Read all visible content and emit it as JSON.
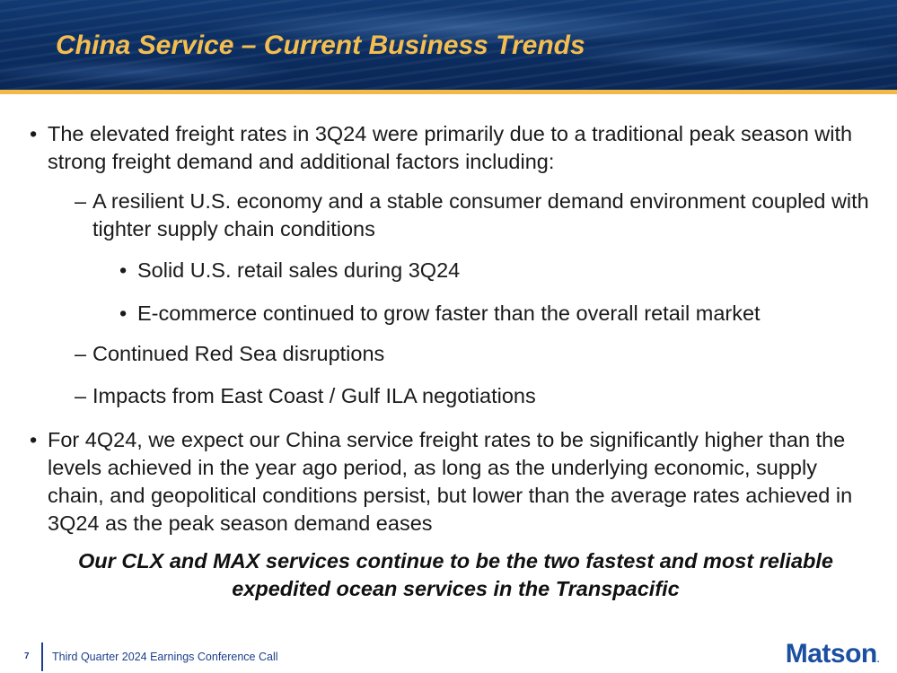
{
  "slide": {
    "title": "China Service – Current Business Trends",
    "page_number": "7",
    "footer_text": "Third Quarter 2024 Earnings Conference Call",
    "logo": {
      "text": "Matson",
      "dot": "."
    }
  },
  "bullets": {
    "b1": {
      "marker": "•",
      "text": "The elevated freight rates in 3Q24 were primarily due to a traditional peak season with strong freight demand and additional factors including:"
    },
    "b1a": {
      "marker": "–",
      "text": "A resilient U.S. economy and a stable consumer demand environment coupled with tighter supply chain conditions"
    },
    "b1a1": {
      "marker": "•",
      "text": "Solid U.S. retail sales during 3Q24"
    },
    "b1a2": {
      "marker": "•",
      "text": "E-commerce continued to grow faster than the overall retail market"
    },
    "b1b": {
      "marker": "–",
      "text": "Continued Red Sea disruptions"
    },
    "b1c": {
      "marker": "–",
      "text": "Impacts from East Coast / Gulf ILA negotiations"
    },
    "b2": {
      "marker": "•",
      "text": "For 4Q24, we expect our China service freight rates to be significantly higher than the levels achieved in the year ago period, as long as the underlying economic, supply chain, and geopolitical conditions persist, but lower than the average rates achieved in 3Q24 as the peak season demand eases"
    }
  },
  "callout": "Our CLX and MAX services continue to be the two fastest and most reliable expedited ocean services in the Transpacific"
}
